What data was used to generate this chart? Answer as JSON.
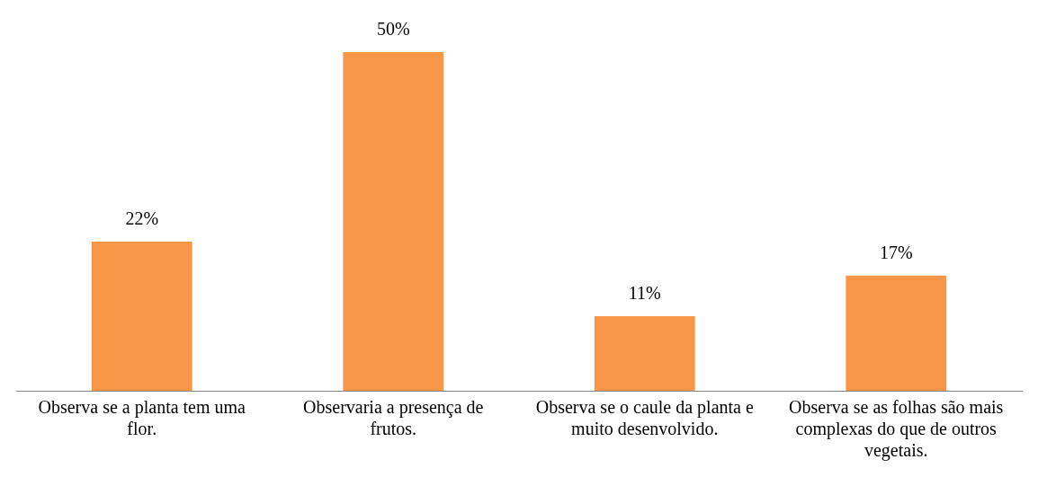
{
  "chart_data": {
    "type": "bar",
    "categories": [
      "Observa se a planta tem uma flor.",
      "Observaria a presença de frutos.",
      "Observa se o caule da planta e muito desenvolvido.",
      "Observa se as folhas são mais complexas do que de outros vegetais."
    ],
    "values": [
      22,
      50,
      11,
      17
    ],
    "value_labels": [
      "22%",
      "50%",
      "11%",
      "17%"
    ],
    "color": "#f79646",
    "grid": false,
    "legend": false
  }
}
